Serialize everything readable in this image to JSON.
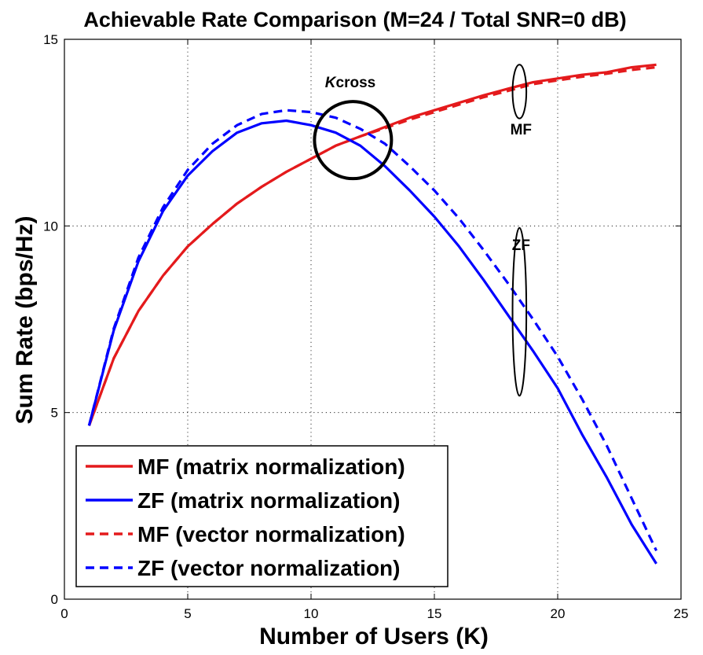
{
  "chart_data": {
    "type": "line",
    "title": "Achievable Rate Comparison (M=24 / Total SNR=0 dB)",
    "xlabel": "Number of Users (K)",
    "ylabel": "Sum Rate (bps/Hz)",
    "xlim": [
      0,
      25
    ],
    "ylim": [
      0,
      15
    ],
    "xticks": [
      0,
      5,
      10,
      15,
      20,
      25
    ],
    "yticks": [
      0,
      5,
      10,
      15
    ],
    "grid": true,
    "legend_position": "bottom-left",
    "x": [
      1,
      2,
      3,
      4,
      5,
      6,
      7,
      8,
      9,
      10,
      11,
      12,
      13,
      14,
      15,
      16,
      17,
      18,
      19,
      20,
      21,
      22,
      23,
      24
    ],
    "series": [
      {
        "name": "MF (matrix normalization)",
        "color": "#e41a1c",
        "style": "solid",
        "values": [
          4.65,
          6.45,
          7.72,
          8.67,
          9.45,
          10.05,
          10.6,
          11.05,
          11.45,
          11.8,
          12.15,
          12.4,
          12.65,
          12.9,
          13.1,
          13.3,
          13.5,
          13.68,
          13.85,
          13.95,
          14.05,
          14.12,
          14.25,
          14.32
        ]
      },
      {
        "name": "ZF (matrix normalization)",
        "color": "#0000ff",
        "style": "solid",
        "values": [
          4.65,
          7.2,
          9.05,
          10.4,
          11.35,
          12.0,
          12.5,
          12.75,
          12.82,
          12.7,
          12.5,
          12.15,
          11.6,
          10.95,
          10.25,
          9.45,
          8.55,
          7.6,
          6.65,
          5.65,
          4.4,
          3.25,
          2.0,
          0.95
        ]
      },
      {
        "name": "MF (vector normalization)",
        "color": "#e41a1c",
        "style": "dashed",
        "values": [
          4.65,
          6.45,
          7.72,
          8.67,
          9.45,
          10.05,
          10.6,
          11.05,
          11.45,
          11.8,
          12.15,
          12.4,
          12.62,
          12.85,
          13.05,
          13.25,
          13.45,
          13.62,
          13.8,
          13.9,
          14.0,
          14.08,
          14.18,
          14.25
        ]
      },
      {
        "name": "ZF (vector normalization)",
        "color": "#0000ff",
        "style": "dashed",
        "values": [
          4.65,
          7.25,
          9.15,
          10.5,
          11.5,
          12.2,
          12.7,
          13.0,
          13.1,
          13.05,
          12.9,
          12.6,
          12.2,
          11.6,
          10.95,
          10.2,
          9.35,
          8.45,
          7.5,
          6.5,
          5.35,
          4.1,
          2.7,
          1.3
        ]
      }
    ],
    "annotations": [
      {
        "id": "kcross",
        "text_italic": "K",
        "text": "cross",
        "center": [
          11.7,
          12.3
        ],
        "radius_x": 1.55,
        "radius_y": 1.55
      },
      {
        "id": "mf",
        "text": "MF",
        "center": [
          18.45,
          13.6
        ],
        "radius_x": 0.28,
        "radius_y": 0.72
      },
      {
        "id": "zf",
        "text": "ZF",
        "center": [
          18.45,
          7.7
        ],
        "radius_x": 0.28,
        "radius_y": 2.25
      }
    ]
  }
}
